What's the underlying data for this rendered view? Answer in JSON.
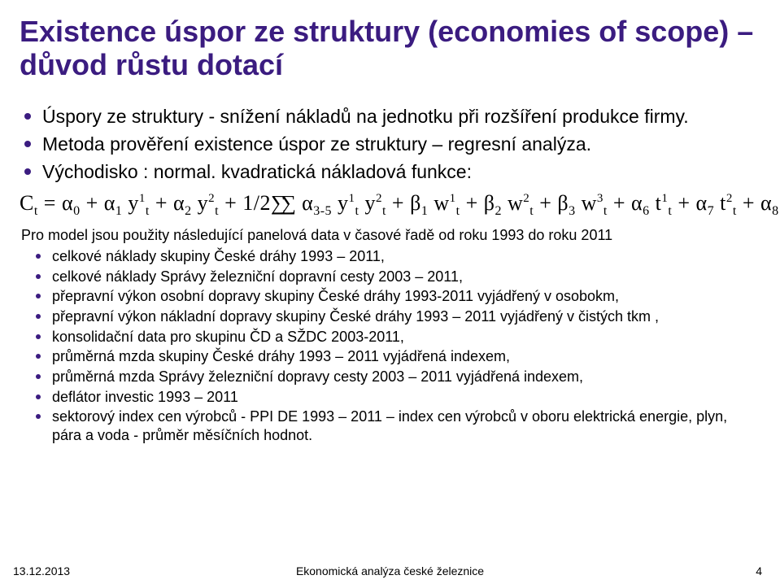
{
  "colors": {
    "accent": "#3b1c80",
    "text": "#000000",
    "background": "#ffffff"
  },
  "title": "Existence úspor ze struktury (economies of scope) – důvod růstu dotací",
  "mainBullets": [
    "Úspory ze struktury - snížení nákladů na jednotku při rozšíření produkce firmy.",
    "Metoda prověření existence úspor ze struktury – regresní analýza.",
    "Východisko : normal. kvadratická nákladová funkce:"
  ],
  "intro": "Pro model jsou použity následující panelová data v časové řadě od roku 1993 do roku 2011",
  "subBullets": [
    "celkové náklady skupiny České dráhy 1993 – 2011,",
    "celkové náklady Správy železniční dopravní cesty 2003 – 2011,",
    "přepravní výkon osobní dopravy skupiny České dráhy 1993-2011 vyjádřený v osobokm,",
    "přepravní výkon nákladní dopravy skupiny České dráhy 1993 – 2011 vyjádřený v čistých tkm ,",
    "konsolidační data pro skupinu ČD a SŽDC 2003-2011,",
    "průměrná mzda skupiny České dráhy 1993 – 2011 vyjádřená indexem,",
    "průměrná mzda Správy železniční dopravy cesty 2003 – 2011 vyjádřená indexem,",
    "deflátor investic 1993 – 2011",
    "sektorový index cen výrobců - PPI DE 1993 – 2011 – index cen výrobců v oboru elektrická energie, plyn, pára a voda - průměr měsíčních hodnot."
  ],
  "footer": {
    "date": "13.12.2013",
    "center": "Ekonomická analýza české železnice",
    "page": "4"
  },
  "typography": {
    "title_fontsize": 36,
    "title_weight": "bold",
    "main_bullet_fontsize": 23,
    "sub_bullet_fontsize": 18,
    "formula_fontsize": 26,
    "footer_fontsize": 14
  }
}
